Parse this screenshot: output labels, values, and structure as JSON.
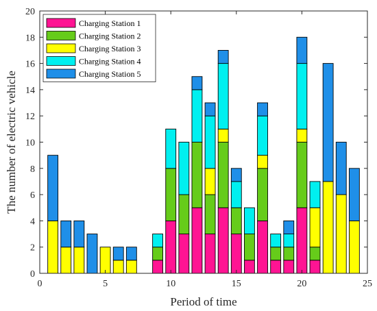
{
  "chart_data": {
    "type": "bar",
    "stacked": true,
    "xlabel": "Period of time",
    "ylabel": "The number of electric vehicle",
    "xlim": [
      0,
      25
    ],
    "ylim": [
      0,
      20
    ],
    "xticks": [
      0,
      5,
      10,
      15,
      20,
      25
    ],
    "yticks": [
      0,
      2,
      4,
      6,
      8,
      10,
      12,
      14,
      16,
      18,
      20
    ],
    "grid": false,
    "legend_position": "top-left",
    "x": [
      1,
      2,
      3,
      4,
      5,
      6,
      7,
      8,
      9,
      10,
      11,
      12,
      13,
      14,
      15,
      16,
      17,
      18,
      19,
      20,
      21,
      22,
      23,
      24
    ],
    "series": [
      {
        "name": "Charging Station 1",
        "color": "#ff1493",
        "values": [
          0,
          0,
          0,
          0,
          0,
          0,
          0,
          0,
          1,
          4,
          3,
          5,
          3,
          5,
          3,
          1,
          4,
          1,
          1,
          5,
          1,
          0,
          0,
          0
        ]
      },
      {
        "name": "Charging Station 2",
        "color": "#66cc1a",
        "values": [
          0,
          0,
          0,
          0,
          0,
          0,
          0,
          0,
          1,
          4,
          3,
          5,
          3,
          5,
          2,
          2,
          4,
          1,
          1,
          5,
          1,
          0,
          0,
          0
        ]
      },
      {
        "name": "Charging Station 3",
        "color": "#ffff00",
        "values": [
          4,
          2,
          2,
          0,
          2,
          1,
          1,
          0,
          0,
          0,
          0,
          0,
          2,
          1,
          0,
          0,
          1,
          0,
          0,
          1,
          3,
          7,
          6,
          4
        ]
      },
      {
        "name": "Charging Station 4",
        "color": "#00f0f0",
        "values": [
          0,
          0,
          0,
          0,
          0,
          0,
          0,
          0,
          1,
          3,
          4,
          4,
          4,
          5,
          2,
          2,
          3,
          1,
          1,
          5,
          2,
          0,
          0,
          0
        ]
      },
      {
        "name": "Charging Station 5",
        "color": "#1f8fe8",
        "values": [
          5,
          2,
          2,
          3,
          0,
          1,
          1,
          0,
          0,
          0,
          0,
          1,
          1,
          1,
          1,
          0,
          1,
          0,
          1,
          2,
          0,
          9,
          4,
          4
        ]
      }
    ]
  }
}
